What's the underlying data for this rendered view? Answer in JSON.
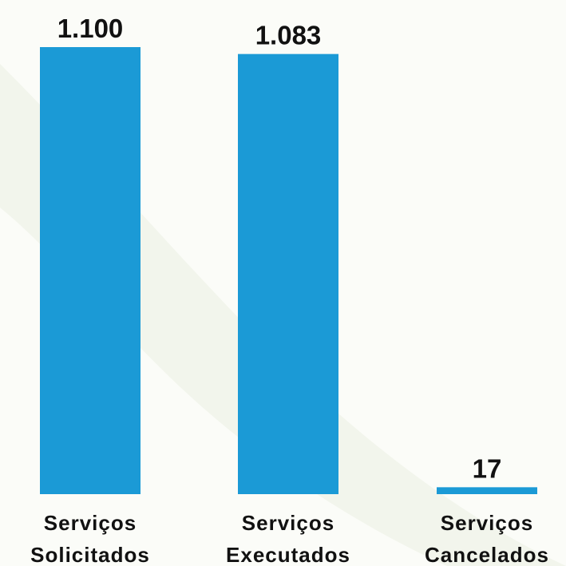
{
  "chart_data": {
    "type": "bar",
    "categories": [
      [
        "Serviços",
        "Solicitados"
      ],
      [
        "Serviços",
        "Executados"
      ],
      [
        "Serviços",
        "Cancelados"
      ]
    ],
    "values": [
      1100,
      1083,
      17
    ],
    "value_labels": [
      "1.100",
      "1.083",
      "17"
    ],
    "title": "",
    "xlabel": "",
    "ylabel": "",
    "ylim": [
      0,
      1100
    ],
    "grid": false,
    "legend": "none",
    "colors": {
      "bar": "#1b9ad6",
      "text": "#111111",
      "background": "#fbfcf8",
      "decoration": "#eef2e6"
    }
  }
}
